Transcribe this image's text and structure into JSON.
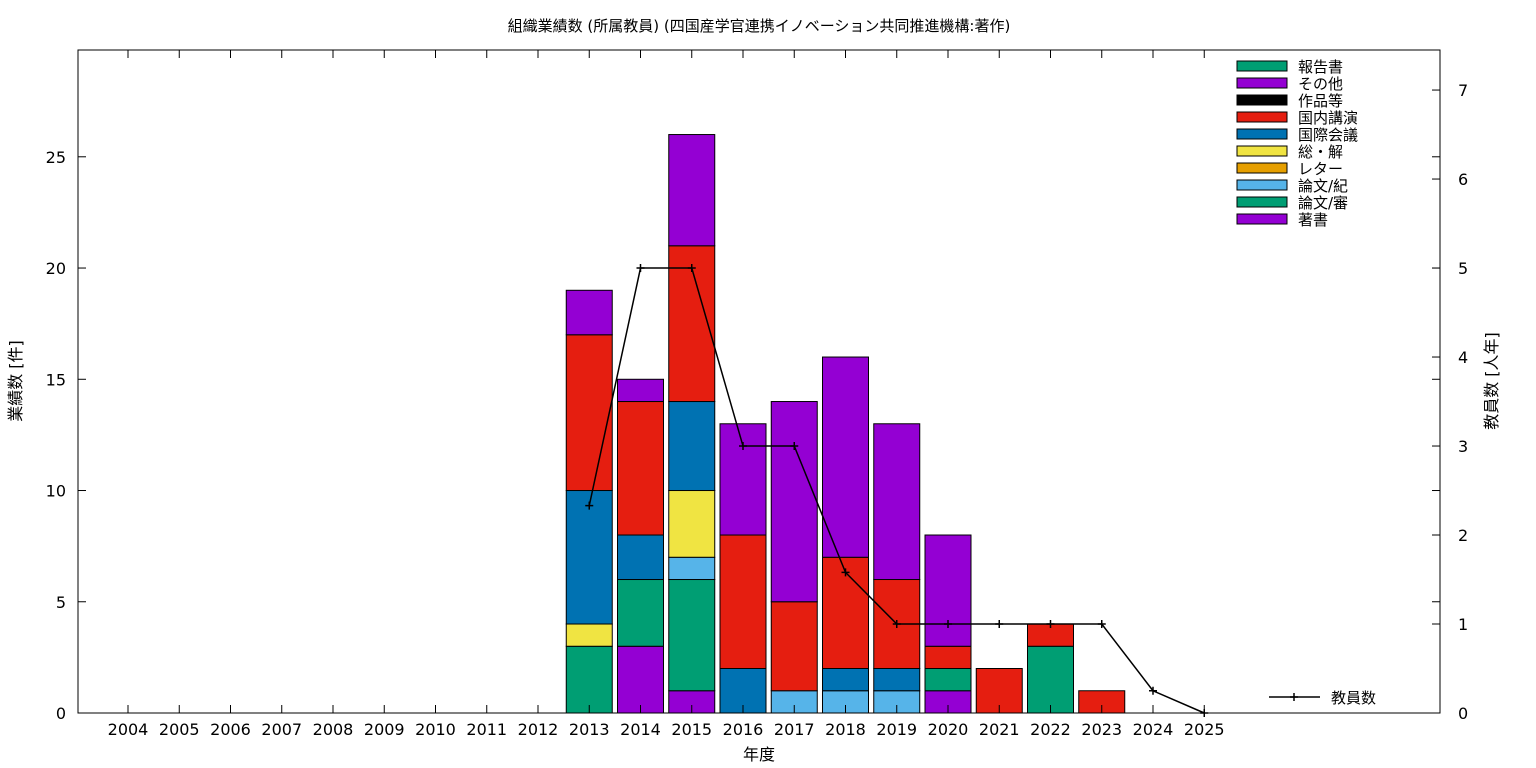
{
  "chart_data": {
    "type": "bar",
    "title": "組織業績数 (所属教員) (四国産学官連携イノベーション共同推進機構:著作)",
    "xlabel": "年度",
    "ylabel": "業績数 [件]",
    "y2label": "教員数 [人年]",
    "categories": [
      "2004",
      "2005",
      "2006",
      "2007",
      "2008",
      "2009",
      "2010",
      "2011",
      "2012",
      "2013",
      "2014",
      "2015",
      "2016",
      "2017",
      "2018",
      "2019",
      "2020",
      "2021",
      "2022",
      "2023",
      "2024",
      "2025"
    ],
    "ylim": [
      0,
      29.8
    ],
    "y2lim": [
      0,
      7.45
    ],
    "yticks": [
      0,
      5,
      10,
      15,
      20,
      25
    ],
    "y2ticks": [
      0,
      1,
      2,
      3,
      4,
      5,
      6,
      7
    ],
    "legend_position": "top-right",
    "stack_series": [
      {
        "name": "著書",
        "color": "#9400d3",
        "values": [
          0,
          0,
          0,
          0,
          0,
          0,
          0,
          0,
          0,
          0,
          3,
          1,
          0,
          0,
          0,
          0,
          1,
          0,
          0,
          0,
          0,
          0
        ]
      },
      {
        "name": "論文/審",
        "color": "#009e73",
        "values": [
          0,
          0,
          0,
          0,
          0,
          0,
          0,
          0,
          0,
          3,
          3,
          5,
          0,
          0,
          0,
          0,
          1,
          0,
          3,
          0,
          0,
          0
        ]
      },
      {
        "name": "論文/紀",
        "color": "#56b4e9",
        "values": [
          0,
          0,
          0,
          0,
          0,
          0,
          0,
          0,
          0,
          0,
          0,
          1,
          0,
          1,
          1,
          1,
          0,
          0,
          0,
          0,
          0,
          0
        ]
      },
      {
        "name": "レター",
        "color": "#e69f00",
        "values": [
          0,
          0,
          0,
          0,
          0,
          0,
          0,
          0,
          0,
          0,
          0,
          0,
          0,
          0,
          0,
          0,
          0,
          0,
          0,
          0,
          0,
          0
        ]
      },
      {
        "name": "総・解",
        "color": "#f0e442",
        "values": [
          0,
          0,
          0,
          0,
          0,
          0,
          0,
          0,
          0,
          1,
          0,
          3,
          0,
          0,
          0,
          0,
          0,
          0,
          0,
          0,
          0,
          0
        ]
      },
      {
        "name": "国際会議",
        "color": "#0072b2",
        "values": [
          0,
          0,
          0,
          0,
          0,
          0,
          0,
          0,
          0,
          6,
          2,
          4,
          2,
          0,
          1,
          1,
          0,
          0,
          0,
          0,
          0,
          0
        ]
      },
      {
        "name": "国内講演",
        "color": "#e51e10",
        "values": [
          0,
          0,
          0,
          0,
          0,
          0,
          0,
          0,
          0,
          7,
          6,
          7,
          6,
          4,
          5,
          4,
          1,
          2,
          1,
          1,
          0,
          0
        ]
      },
      {
        "name": "作品等",
        "color": "#000000",
        "values": [
          0,
          0,
          0,
          0,
          0,
          0,
          0,
          0,
          0,
          0,
          0,
          0,
          0,
          0,
          0,
          0,
          0,
          0,
          0,
          0,
          0,
          0
        ]
      },
      {
        "name": "その他",
        "color": "#9400d3",
        "values": [
          0,
          0,
          0,
          0,
          0,
          0,
          0,
          0,
          0,
          2,
          1,
          5,
          5,
          9,
          9,
          7,
          5,
          0,
          0,
          0,
          0,
          0
        ]
      },
      {
        "name": "報告書",
        "color": "#009e73",
        "values": [
          0,
          0,
          0,
          0,
          0,
          0,
          0,
          0,
          0,
          0,
          0,
          0,
          0,
          0,
          0,
          0,
          0,
          0,
          0,
          0,
          0,
          0
        ]
      }
    ],
    "legend_order": [
      "報告書",
      "その他",
      "作品等",
      "国内講演",
      "国際会議",
      "総・解",
      "レター",
      "論文/紀",
      "論文/審",
      "著書"
    ],
    "line_series": {
      "name": "教員数",
      "color": "#000000",
      "x": [
        "2013",
        "2014",
        "2015",
        "2016",
        "2017",
        "2018",
        "2019",
        "2020",
        "2021",
        "2022",
        "2023",
        "2024",
        "2025"
      ],
      "values": [
        2.33,
        5,
        5,
        3,
        3,
        1.58,
        1,
        1,
        1,
        1,
        1,
        0.25,
        0
      ]
    }
  }
}
